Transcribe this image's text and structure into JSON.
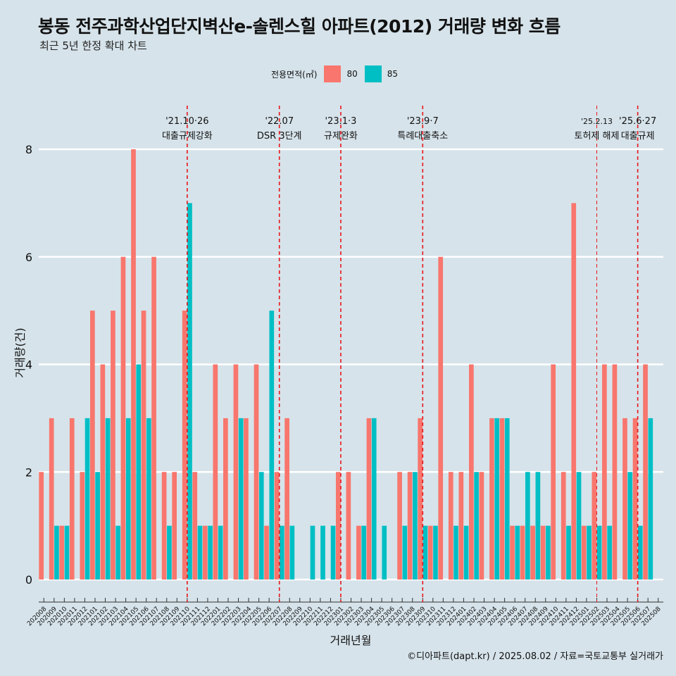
{
  "header": {
    "title": "봉동 전주과학산업단지벽산e-솔렌스힐 아파트(2012) 거래량 변화 흐름",
    "subtitle": "최근 5년 한정 확대 차트",
    "caption": "©디아파트(dapt.kr) / 2025.08.02 / 자료=국토교통부 실거래가"
  },
  "legend": {
    "title": "전용면적(㎡)",
    "items": [
      {
        "label": "80",
        "color": "#f8766d"
      },
      {
        "label": "85",
        "color": "#00bfc4"
      }
    ]
  },
  "chart_data": {
    "type": "bar",
    "xlabel": "거래년월",
    "ylabel": "거래량(건)",
    "ylim": [
      0,
      8
    ],
    "yticks": [
      0,
      2,
      4,
      6,
      8
    ],
    "categories": [
      "202008",
      "202009",
      "202010",
      "202011",
      "202012",
      "202101",
      "202102",
      "202103",
      "202104",
      "202105",
      "202106",
      "202107",
      "202108",
      "202109",
      "202110",
      "202111",
      "202112",
      "202201",
      "202202",
      "202203",
      "202204",
      "202205",
      "202206",
      "202207",
      "202208",
      "202209",
      "202210",
      "202211",
      "202212",
      "202301",
      "202302",
      "202303",
      "202304",
      "202305",
      "202306",
      "202307",
      "202308",
      "202309",
      "202310",
      "202311",
      "202312",
      "202401",
      "202402",
      "202403",
      "202404",
      "202405",
      "202406",
      "202407",
      "202408",
      "202409",
      "202410",
      "202411",
      "202412",
      "202501",
      "202502",
      "202503",
      "202504",
      "202505",
      "202506",
      "202507",
      "202508"
    ],
    "series": [
      {
        "name": "80",
        "color": "#f8766d",
        "values": [
          2,
          3,
          1,
          3,
          2,
          5,
          4,
          5,
          6,
          8,
          5,
          6,
          2,
          2,
          5,
          2,
          1,
          4,
          3,
          4,
          3,
          4,
          1,
          2,
          3,
          0,
          0,
          0,
          0,
          2,
          2,
          1,
          3,
          0,
          0,
          2,
          2,
          3,
          1,
          6,
          2,
          2,
          4,
          2,
          3,
          3,
          1,
          1,
          1,
          1,
          4,
          2,
          7,
          1,
          2,
          4,
          4,
          3,
          3,
          4,
          0
        ]
      },
      {
        "name": "85",
        "color": "#00bfc4",
        "values": [
          0,
          1,
          1,
          0,
          3,
          2,
          3,
          1,
          3,
          4,
          3,
          0,
          1,
          0,
          7,
          1,
          1,
          1,
          0,
          3,
          0,
          2,
          5,
          1,
          1,
          0,
          1,
          1,
          1,
          0,
          0,
          1,
          3,
          1,
          0,
          1,
          2,
          1,
          1,
          0,
          1,
          1,
          2,
          0,
          3,
          3,
          1,
          2,
          2,
          1,
          0,
          1,
          2,
          1,
          1,
          1,
          0,
          2,
          1,
          3,
          0
        ]
      }
    ],
    "events": [
      {
        "index": 14,
        "date": "'21.10·26",
        "label": "대출규제강화",
        "style": "major"
      },
      {
        "index": 23,
        "date": "'22.07",
        "label": "DSR 3단계",
        "style": "major"
      },
      {
        "index": 29,
        "date": "'23.1·3",
        "label": "규제완화",
        "style": "major"
      },
      {
        "index": 37,
        "date": "'23.9·7",
        "label": "특례대출축소",
        "style": "major"
      },
      {
        "index": 54,
        "date": "'25.2.13",
        "label": "토허제 해제",
        "style": "minor"
      },
      {
        "index": 58,
        "date": "'25.6·27",
        "label": "대출규제",
        "style": "major"
      }
    ],
    "grid": true,
    "legend_position": "top"
  }
}
